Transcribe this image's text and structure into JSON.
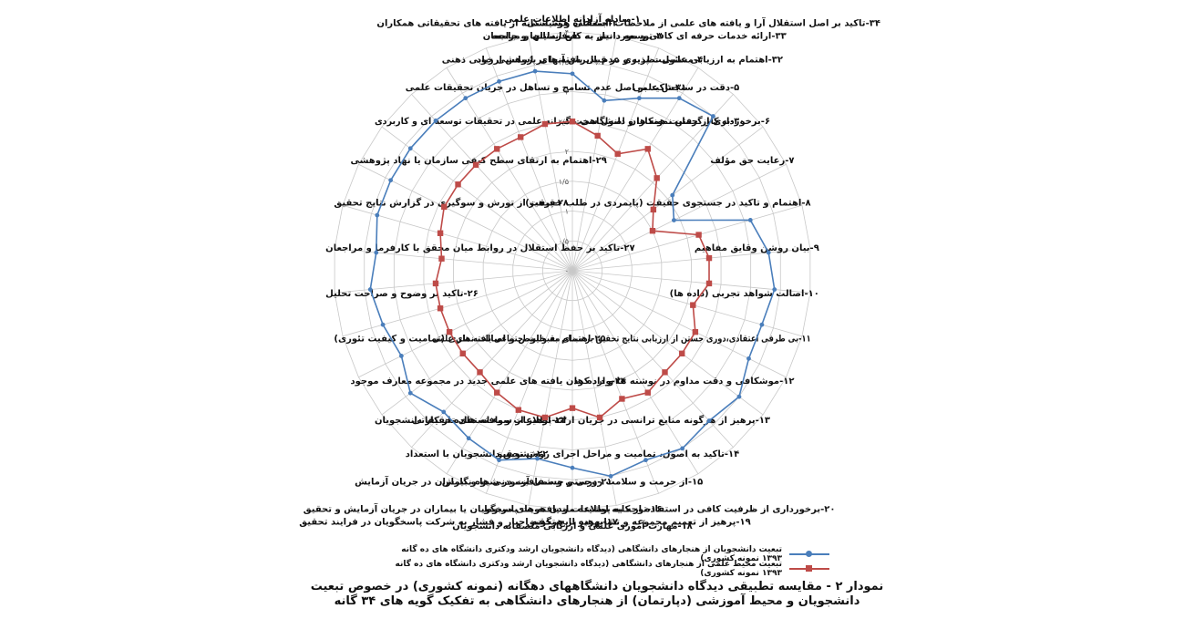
{
  "colors": {
    "series1": "#4a7ebb",
    "series2": "#be4b48",
    "grid": "#c8c8c8"
  },
  "chart_data": {
    "type": "radar",
    "rlim": [
      0,
      4
    ],
    "ticks": [
      "۰",
      "۰/۵",
      "۱",
      "۱/۵",
      "۲",
      "۲/۵",
      "۳",
      "۳/۵",
      "۴"
    ],
    "grid": true,
    "legend_position": "bottom",
    "categories": [
      "۱-مبادله آزادانه اطلاعات علمی",
      "۲-استفاده هوشمندانه از یافته های تحقیقاتی همکاران",
      "۳-توسعه دانش به نفع انسانها و جامعه",
      "۴-مسئولیت پذیری در قبال یافته های پژوهشی خود",
      "۵-دقت در سنجش علمی",
      "۶-برخورداری از حمایت همکاران دانشگاهی",
      "۷-رعایت حق مؤلف",
      "۸-اهتمام و تاکید در جستجوی حقیقت (پایمردی در طلب حقیقت)",
      "۹-بیان روشن وقایق مفاهیم",
      "۱۰-اصالت شواهد تجربی (داده ها)",
      "۱۱-بی طرفی اعتقادی،دوری جستن از ارزیابی نتایج تحقیق بر مبنای مقبولیت اجتماعی یافته های علمی",
      "۱۲-موشکافی و دقت مداوم در نوشته ها و داده ها",
      "۱۳-پرهیز از هرگونه منابع ترانسی در جریان ارائه اطلاعات و یافته های تحقیقاتی",
      "۱۴-تاکید به اصول، تمامیت و مراحل اجرای روش تحقیق",
      "۱۵-از حرمت و سلامت روحی و جسمی آزمودنی ها و بیماران در جریان آزمایش",
      "۱۶-توجه به پوشیده ماندن هویت پاسخگویان یا بیماران در جریان آزمایش و تحقیق",
      "۱۷-پرهیز از هرگونه اجبار و فشار به شرکت پاسخگویان در فرایند تحقیق",
      "۱۸-مهارت آموزی علمی و ارزیابی منصفانه دانشجویان",
      "۱۹-پرهیز از تعمیم مجموعه و تشابهزده تایج تحقیق",
      "۲۰-برخورداری از ظرفیت کافی در استفاده از کلیه اطلاعات و یافته های مربوط",
      "۲۱-درستی و شفافیت در شیوه نگارش",
      "۲۲-تشویق دانشجویان با استعداد",
      "۲۳-پرهیز از سوء استفاده از کار دانشجویان",
      "۲۴-وارد کردن یافته های علمی جدید در مجموعه معارف موجود",
      "۲۵-اهتمام به خلوص و اصالت نظری (تمامیت و کیفیت تئوری)",
      "۲۶-تاکید بر وضوح و صراحت تحلیل",
      "۲۷-تاکید بر حفظ استقلال در روابط میان محقق با کارفرما و مراجعان",
      "۲۸-پرهیز از تورش و سوگیری در گزارش نتایج تحقیق",
      "۲۹-اهتمام به ارتقای سطح کیفی سازمان یا نهاد پژوهشی",
      "۳۰-به کار گرفتن نمونه ها و اصول سخت گیرانه علمی در تحقیقات توسعه ای و کاربردی",
      "۳۱-تاکید بر اصل عدم تسامح و تساهل در جریان تحقیقات علمی",
      "۳۲-اهتمام به ارزیابی علمی نظریه و عدم پذیرش آنها بر اساس ارزیابی ذهنی",
      "۳۳-ارائه خدمات حرفه ای کافی و مورد نیاز به کارفرمایان و مراجعان",
      "۳۴-تاکید بر اصل استقلال آرا و یافته های علمی از ملاحظات اجتماعی و سیاسی"
    ],
    "series": [
      {
        "name": "تبعیت دانشجویان از هنجارهای دانشگاهی (دیدگاه دانشجویان ارشد ودکتری دانشگاه های ده گانه ۱۳۹۳ نمونه کشوری)",
        "values": [
          3.3,
          2.9,
          3.1,
          3.4,
          3.5,
          2.1,
          1.9,
          3.1,
          3.3,
          3.4,
          3.3,
          3.3,
          3.5,
          3.4,
          3.5,
          3.4,
          3.5,
          3.3,
          3.2,
          3.4,
          3.3,
          3.2,
          3.4,
          3.2,
          3.3,
          3.4,
          3.3,
          3.4,
          3.4,
          3.4,
          3.4,
          3.4,
          3.4,
          3.4
        ]
      },
      {
        "name": "تبعیت محیط علمی از هنجارهای دانشگاهی (دیدگاه دانشجویان ارشد ودکتری دانشگاه های ده گانه ۱۳۹۳ نمونه کشوری)",
        "values": [
          2.5,
          2.3,
          2.1,
          2.4,
          2.1,
          1.7,
          1.5,
          2.2,
          2.3,
          2.3,
          2.1,
          2.3,
          2.3,
          2.3,
          2.4,
          2.3,
          2.5,
          2.3,
          2.5,
          2.5,
          2.4,
          2.3,
          2.3,
          2.3,
          2.3,
          2.3,
          2.2,
          2.3,
          2.4,
          2.4,
          2.4,
          2.4,
          2.4,
          2.5
        ]
      }
    ]
  },
  "caption": {
    "line1": "نمودار ۲ - مقایسه تطبیقی دیدگاه دانشجویان دانشگاههای دهگانه (نمونه کشوری) در خصوص تبعیت",
    "line2": "دانشجویان و محیط آموزشی (دپارتمان) از هنجارهای دانشگاهی به تفکیک گویه های ۳۴ گانه"
  }
}
